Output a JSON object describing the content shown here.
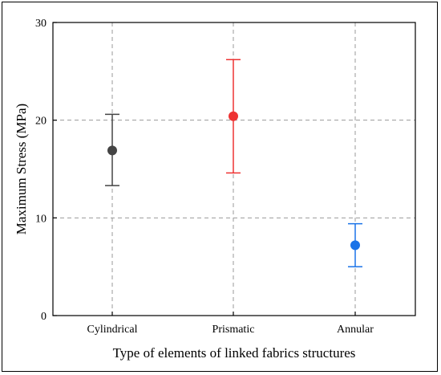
{
  "chart_data": {
    "type": "scatter",
    "title": "",
    "xlabel": "Type of elements of linked fabrics structures",
    "ylabel": "Maximum Stress (MPa)",
    "ylim": [
      0,
      30
    ],
    "yticks": [
      0,
      10,
      20,
      30
    ],
    "grid": true,
    "categories": [
      "Cylindrical",
      "Prismatic",
      "Annular"
    ],
    "points": [
      {
        "category": "Cylindrical",
        "value": 16.9,
        "err_low": 13.3,
        "err_high": 20.6,
        "color": "#444444"
      },
      {
        "category": "Prismatic",
        "value": 20.4,
        "err_low": 14.6,
        "err_high": 26.2,
        "color": "#ee3333"
      },
      {
        "category": "Annular",
        "value": 7.2,
        "err_low": 5.0,
        "err_high": 9.4,
        "color": "#1a73e8"
      }
    ]
  }
}
